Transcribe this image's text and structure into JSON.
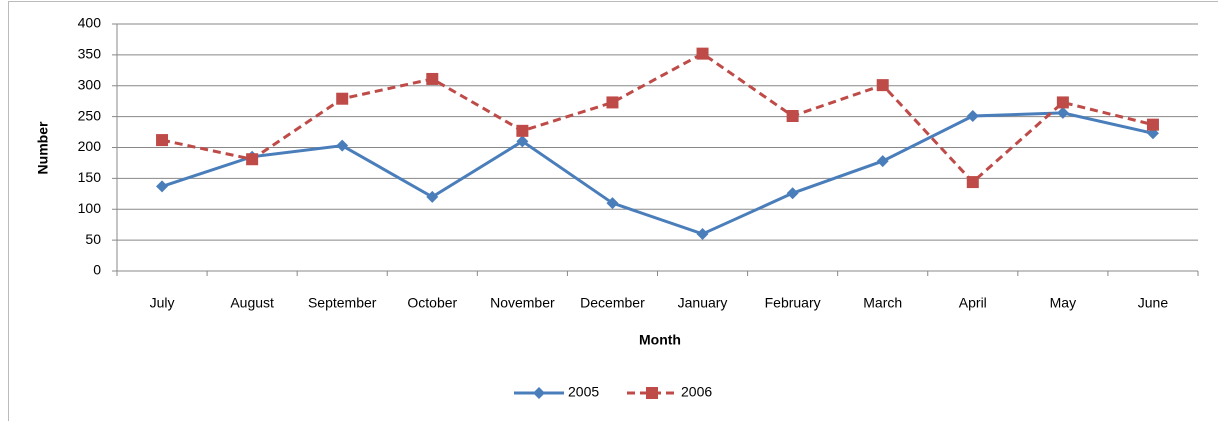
{
  "chart_data": {
    "type": "line",
    "x_label": "Month",
    "y_label": "Number",
    "categories": [
      "July",
      "August",
      "September",
      "October",
      "November",
      "December",
      "January",
      "February",
      "March",
      "April",
      "May",
      "June"
    ],
    "series": [
      {
        "name": "2005",
        "color": "#4a7ebb",
        "marker": "diamond",
        "dashed": false,
        "values": [
          137,
          185,
          203,
          120,
          210,
          110,
          60,
          126,
          178,
          251,
          256,
          223
        ]
      },
      {
        "name": "2006",
        "color": "#be4b48",
        "marker": "square",
        "dashed": true,
        "values": [
          212,
          181,
          279,
          311,
          227,
          273,
          352,
          251,
          301,
          144,
          273,
          237
        ]
      }
    ],
    "ylim": [
      0,
      400
    ],
    "yticks": [
      0,
      50,
      100,
      150,
      200,
      250,
      300,
      350,
      400
    ],
    "grid": true,
    "legend": "bottom"
  }
}
